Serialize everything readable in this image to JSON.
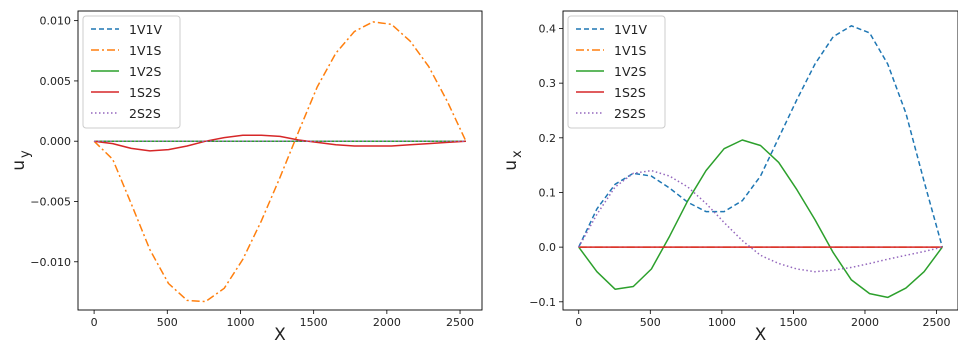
{
  "chart_data": [
    {
      "type": "line",
      "xlabel": "X",
      "ylabel": "u",
      "ylabel_sub": "y",
      "xlim": [
        -110,
        2650
      ],
      "ylim": [
        -0.014,
        0.0108
      ],
      "xticks": [
        0,
        500,
        1000,
        1500,
        2000,
        2500
      ],
      "xtick_labels": [
        "0",
        "500",
        "1000",
        "1500",
        "2000",
        "2500"
      ],
      "yticks": [
        -0.01,
        -0.005,
        0.0,
        0.005,
        0.01
      ],
      "ytick_labels": [
        "−0.010",
        "−0.005",
        "0.000",
        "0.005",
        "0.010"
      ],
      "grid": false,
      "legend_position": "top-left",
      "x": [
        0,
        127,
        254,
        381,
        508,
        635,
        762,
        889,
        1016,
        1143,
        1270,
        1397,
        1524,
        1651,
        1778,
        1905,
        2032,
        2159,
        2286,
        2413,
        2540
      ],
      "series": [
        {
          "name": "1V1V",
          "color": "#1f77b4",
          "dash": "5,3",
          "values": [
            0,
            0,
            0,
            0,
            0,
            0,
            0,
            0,
            0,
            0,
            0,
            0,
            0,
            0,
            0,
            0,
            0,
            0,
            0,
            0,
            0
          ]
        },
        {
          "name": "1V1S",
          "color": "#ff7f0e",
          "dash": "8,3,2,3",
          "values": [
            0,
            -0.0015,
            -0.0052,
            -0.009,
            -0.0118,
            -0.0132,
            -0.0133,
            -0.0122,
            -0.0098,
            -0.0066,
            -0.003,
            0.0008,
            0.0045,
            0.0073,
            0.0091,
            0.0099,
            0.0097,
            0.0083,
            0.0062,
            0.0033,
            0
          ]
        },
        {
          "name": "1V2S",
          "color": "#2ca02c",
          "dash": "",
          "values": [
            0,
            0,
            0,
            0,
            0,
            0,
            0,
            0,
            0,
            0,
            0,
            0,
            0,
            0,
            0,
            0,
            0,
            0,
            0,
            0,
            0
          ]
        },
        {
          "name": "1S2S",
          "color": "#d62728",
          "dash": "",
          "values": [
            0,
            -0.0002,
            -0.0006,
            -0.0008,
            -0.0007,
            -0.0004,
            0.0,
            0.0003,
            0.0005,
            0.0005,
            0.0004,
            0.0001,
            -0.0001,
            -0.0003,
            -0.0004,
            -0.0004,
            -0.0004,
            -0.0003,
            -0.0002,
            -0.0001,
            0
          ]
        },
        {
          "name": "2S2S",
          "color": "#9467bd",
          "dash": "1.5,2.5",
          "values": [
            0,
            0,
            0,
            0,
            0,
            0,
            0,
            0,
            0,
            0,
            0,
            0,
            0,
            0,
            0,
            0,
            0,
            0,
            0,
            0,
            0
          ]
        }
      ]
    },
    {
      "type": "line",
      "xlabel": "X",
      "ylabel": "u",
      "ylabel_sub": "x",
      "xlim": [
        -110,
        2650
      ],
      "ylim": [
        -0.115,
        0.432
      ],
      "xticks": [
        0,
        500,
        1000,
        1500,
        2000,
        2500
      ],
      "xtick_labels": [
        "0",
        "500",
        "1000",
        "1500",
        "2000",
        "2500"
      ],
      "yticks": [
        -0.1,
        0.0,
        0.1,
        0.2,
        0.3,
        0.4
      ],
      "ytick_labels": [
        "−0.1",
        "0.0",
        "0.1",
        "0.2",
        "0.3",
        "0.4"
      ],
      "grid": false,
      "legend_position": "top-left",
      "x": [
        0,
        127,
        254,
        381,
        508,
        635,
        762,
        889,
        1016,
        1143,
        1270,
        1397,
        1524,
        1651,
        1778,
        1905,
        2032,
        2159,
        2286,
        2413,
        2540
      ],
      "series": [
        {
          "name": "1V1V",
          "color": "#1f77b4",
          "dash": "5,3",
          "values": [
            0,
            0.07,
            0.115,
            0.135,
            0.13,
            0.108,
            0.082,
            0.065,
            0.065,
            0.085,
            0.13,
            0.2,
            0.27,
            0.335,
            0.385,
            0.405,
            0.392,
            0.335,
            0.245,
            0.12,
            0
          ]
        },
        {
          "name": "1V1S",
          "color": "#ff7f0e",
          "dash": "8,3,2,3",
          "values": [
            0,
            0,
            0,
            0,
            0,
            0,
            0,
            0,
            0,
            0,
            0,
            0,
            0,
            0,
            0,
            0,
            0,
            0,
            0,
            0,
            0
          ]
        },
        {
          "name": "1V2S",
          "color": "#2ca02c",
          "dash": "",
          "values": [
            0,
            -0.045,
            -0.077,
            -0.072,
            -0.04,
            0.02,
            0.085,
            0.14,
            0.18,
            0.196,
            0.186,
            0.155,
            0.105,
            0.05,
            -0.01,
            -0.06,
            -0.085,
            -0.092,
            -0.075,
            -0.045,
            0
          ]
        },
        {
          "name": "1S2S",
          "color": "#d62728",
          "dash": "",
          "values": [
            0,
            0,
            0,
            0,
            0,
            0,
            0,
            0,
            0,
            0,
            0,
            0,
            0,
            0,
            0,
            0,
            0,
            0,
            0,
            0,
            0
          ]
        },
        {
          "name": "2S2S",
          "color": "#9467bd",
          "dash": "1.5,2.5",
          "values": [
            0,
            0.06,
            0.11,
            0.135,
            0.14,
            0.13,
            0.11,
            0.08,
            0.045,
            0.012,
            -0.015,
            -0.03,
            -0.04,
            -0.045,
            -0.042,
            -0.037,
            -0.03,
            -0.022,
            -0.015,
            -0.008,
            0
          ]
        }
      ]
    }
  ]
}
